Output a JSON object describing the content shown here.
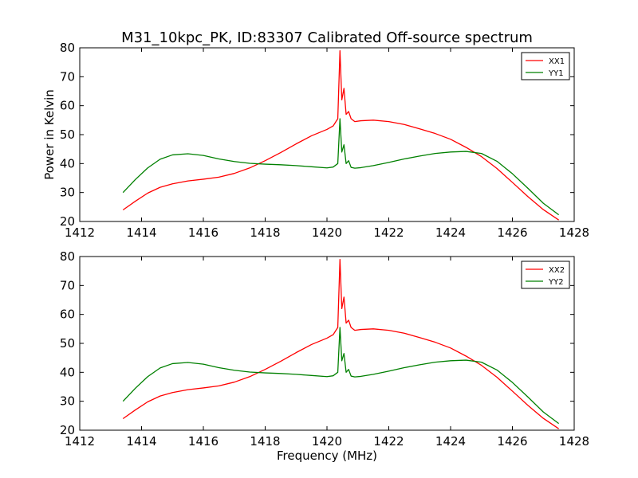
{
  "title": "M31_10kpc_PK, ID:83307 Calibrated Off-source spectrum",
  "colors": {
    "red": "#ff0000",
    "green": "#008000",
    "axis": "#000000",
    "background": "#ffffff"
  },
  "chart_data": [
    {
      "type": "line",
      "title": "M31_10kpc_PK, ID:83307 Calibrated Off-source spectrum",
      "xlabel": "",
      "ylabel": "Power in Kelvin",
      "xlim": [
        1412,
        1428
      ],
      "ylim": [
        20,
        80
      ],
      "xticks": [
        1412,
        1414,
        1416,
        1418,
        1420,
        1422,
        1424,
        1426,
        1428
      ],
      "yticks": [
        20,
        30,
        40,
        50,
        60,
        70,
        80
      ],
      "grid": false,
      "legend_position": "top-right",
      "series": [
        {
          "name": "XX1",
          "color": "#ff0000",
          "x": [
            1413.4,
            1413.8,
            1414.2,
            1414.6,
            1415.0,
            1415.5,
            1416.0,
            1416.5,
            1417.0,
            1417.5,
            1418.0,
            1418.5,
            1419.0,
            1419.5,
            1420.0,
            1420.2,
            1420.35,
            1420.42,
            1420.48,
            1420.55,
            1420.62,
            1420.7,
            1420.78,
            1420.9,
            1421.1,
            1421.5,
            1422.0,
            1422.5,
            1423.0,
            1423.5,
            1424.0,
            1424.5,
            1425.0,
            1425.5,
            1426.0,
            1426.5,
            1427.0,
            1427.5
          ],
          "y": [
            24.0,
            27.0,
            29.8,
            31.8,
            33.0,
            34.0,
            34.6,
            35.3,
            36.6,
            38.5,
            41.0,
            43.8,
            46.8,
            49.6,
            51.8,
            53.0,
            55.5,
            79.0,
            62.0,
            66.0,
            57.0,
            58.0,
            55.5,
            54.5,
            54.8,
            55.0,
            54.5,
            53.5,
            52.0,
            50.4,
            48.4,
            45.6,
            42.4,
            38.3,
            33.5,
            28.6,
            24.1,
            20.5
          ]
        },
        {
          "name": "YY1",
          "color": "#008000",
          "x": [
            1413.4,
            1413.8,
            1414.2,
            1414.6,
            1415.0,
            1415.5,
            1416.0,
            1416.5,
            1417.0,
            1417.5,
            1418.0,
            1418.5,
            1419.0,
            1419.5,
            1420.0,
            1420.2,
            1420.35,
            1420.42,
            1420.48,
            1420.55,
            1420.62,
            1420.7,
            1420.78,
            1420.9,
            1421.1,
            1421.5,
            1422.0,
            1422.5,
            1423.0,
            1423.5,
            1424.0,
            1424.5,
            1425.0,
            1425.5,
            1426.0,
            1426.5,
            1427.0,
            1427.5
          ],
          "y": [
            30.0,
            34.5,
            38.5,
            41.5,
            43.0,
            43.4,
            42.8,
            41.6,
            40.7,
            40.1,
            39.8,
            39.6,
            39.3,
            38.9,
            38.5,
            38.8,
            40.0,
            55.5,
            44.0,
            46.5,
            40.0,
            41.0,
            38.7,
            38.4,
            38.6,
            39.3,
            40.4,
            41.6,
            42.6,
            43.5,
            44.0,
            44.2,
            43.5,
            40.8,
            36.5,
            31.5,
            26.3,
            22.3
          ]
        }
      ]
    },
    {
      "type": "line",
      "title": "",
      "xlabel": "Frequency (MHz)",
      "ylabel": "",
      "xlim": [
        1412,
        1428
      ],
      "ylim": [
        20,
        80
      ],
      "xticks": [
        1412,
        1414,
        1416,
        1418,
        1420,
        1422,
        1424,
        1426,
        1428
      ],
      "yticks": [
        20,
        30,
        40,
        50,
        60,
        70,
        80
      ],
      "grid": false,
      "legend_position": "top-right",
      "series": [
        {
          "name": "XX2",
          "color": "#ff0000",
          "x": [
            1413.4,
            1413.8,
            1414.2,
            1414.6,
            1415.0,
            1415.5,
            1416.0,
            1416.5,
            1417.0,
            1417.5,
            1418.0,
            1418.5,
            1419.0,
            1419.5,
            1420.0,
            1420.2,
            1420.35,
            1420.42,
            1420.48,
            1420.55,
            1420.62,
            1420.7,
            1420.78,
            1420.9,
            1421.1,
            1421.5,
            1422.0,
            1422.5,
            1423.0,
            1423.5,
            1424.0,
            1424.5,
            1425.0,
            1425.5,
            1426.0,
            1426.5,
            1427.0,
            1427.5
          ],
          "y": [
            24.0,
            27.0,
            29.8,
            31.8,
            33.0,
            34.0,
            34.6,
            35.3,
            36.6,
            38.5,
            41.0,
            43.8,
            46.8,
            49.6,
            51.8,
            53.0,
            55.5,
            79.0,
            62.0,
            66.0,
            57.0,
            58.0,
            55.5,
            54.5,
            54.8,
            55.0,
            54.5,
            53.5,
            52.0,
            50.4,
            48.4,
            45.6,
            42.4,
            38.3,
            33.5,
            28.6,
            24.1,
            20.5
          ]
        },
        {
          "name": "YY2",
          "color": "#008000",
          "x": [
            1413.4,
            1413.8,
            1414.2,
            1414.6,
            1415.0,
            1415.5,
            1416.0,
            1416.5,
            1417.0,
            1417.5,
            1418.0,
            1418.5,
            1419.0,
            1419.5,
            1420.0,
            1420.2,
            1420.35,
            1420.42,
            1420.48,
            1420.55,
            1420.62,
            1420.7,
            1420.78,
            1420.9,
            1421.1,
            1421.5,
            1422.0,
            1422.5,
            1423.0,
            1423.5,
            1424.0,
            1424.5,
            1425.0,
            1425.5,
            1426.0,
            1426.5,
            1427.0,
            1427.5
          ],
          "y": [
            30.0,
            34.5,
            38.5,
            41.5,
            43.0,
            43.4,
            42.8,
            41.6,
            40.7,
            40.1,
            39.8,
            39.6,
            39.3,
            38.9,
            38.5,
            38.8,
            40.0,
            55.5,
            44.0,
            46.5,
            40.0,
            41.0,
            38.7,
            38.4,
            38.6,
            39.3,
            40.4,
            41.6,
            42.6,
            43.5,
            44.0,
            44.2,
            43.5,
            40.8,
            36.5,
            31.5,
            26.3,
            22.3
          ]
        }
      ]
    }
  ]
}
